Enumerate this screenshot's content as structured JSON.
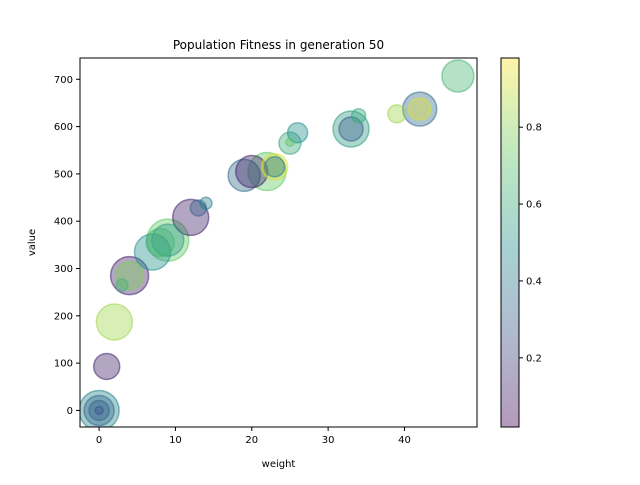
{
  "chart_data": {
    "type": "scatter",
    "title": "Population Fitness in generation 50",
    "xlabel": "weight",
    "ylabel": "value",
    "xlim": [
      -2.5,
      49.5
    ],
    "ylim": [
      -35,
      745
    ],
    "xticks": [
      0,
      10,
      20,
      30,
      40
    ],
    "yticks": [
      0,
      100,
      200,
      300,
      400,
      500,
      600,
      700
    ],
    "grid": false,
    "colormap": "viridis",
    "alpha": 0.4,
    "colorbar": {
      "range": [
        0.02,
        0.98
      ],
      "ticks": [
        0.2,
        0.4,
        0.6,
        0.8
      ]
    },
    "points": [
      {
        "x": 0,
        "y": 0,
        "size": 20,
        "color": 0.45
      },
      {
        "x": 0,
        "y": 0,
        "size": 15,
        "color": 0.35
      },
      {
        "x": 0,
        "y": 0,
        "size": 10,
        "color": 0.3
      },
      {
        "x": 0,
        "y": 0,
        "size": 4,
        "color": 0.25
      },
      {
        "x": 1,
        "y": 93,
        "size": 13,
        "color": 0.1
      },
      {
        "x": 2,
        "y": 187,
        "size": 18,
        "color": 0.85
      },
      {
        "x": 3,
        "y": 265,
        "size": 6,
        "color": 0.65
      },
      {
        "x": 4,
        "y": 285,
        "size": 14,
        "color": 0.8
      },
      {
        "x": 4,
        "y": 285,
        "size": 19,
        "color": 0.1
      },
      {
        "x": 7,
        "y": 335,
        "size": 18,
        "color": 0.5
      },
      {
        "x": 8,
        "y": 355,
        "size": 14,
        "color": 0.65
      },
      {
        "x": 9,
        "y": 360,
        "size": 21,
        "color": 0.75
      },
      {
        "x": 9,
        "y": 360,
        "size": 16,
        "color": 0.55
      },
      {
        "x": 12,
        "y": 408,
        "size": 18,
        "color": 0.1
      },
      {
        "x": 13,
        "y": 428,
        "size": 8,
        "color": 0.3
      },
      {
        "x": 14,
        "y": 438,
        "size": 6,
        "color": 0.45
      },
      {
        "x": 19,
        "y": 497,
        "size": 16,
        "color": 0.35
      },
      {
        "x": 20,
        "y": 505,
        "size": 16,
        "color": 0.1
      },
      {
        "x": 22,
        "y": 505,
        "size": 19,
        "color": 0.75
      },
      {
        "x": 23,
        "y": 515,
        "size": 13,
        "color": 0.95
      },
      {
        "x": 23,
        "y": 515,
        "size": 10,
        "color": 0.4
      },
      {
        "x": 25,
        "y": 565,
        "size": 11,
        "color": 0.6
      },
      {
        "x": 25,
        "y": 567,
        "size": 4,
        "color": 0.75
      },
      {
        "x": 26,
        "y": 587,
        "size": 10,
        "color": 0.5
      },
      {
        "x": 33,
        "y": 595,
        "size": 18,
        "color": 0.55
      },
      {
        "x": 33,
        "y": 595,
        "size": 12,
        "color": 0.3
      },
      {
        "x": 34,
        "y": 623,
        "size": 7,
        "color": 0.6
      },
      {
        "x": 39,
        "y": 627,
        "size": 9,
        "color": 0.85
      },
      {
        "x": 42,
        "y": 637,
        "size": 17,
        "color": 0.35
      },
      {
        "x": 42,
        "y": 637,
        "size": 11,
        "color": 0.95
      },
      {
        "x": 47,
        "y": 707,
        "size": 16,
        "color": 0.65
      }
    ]
  }
}
